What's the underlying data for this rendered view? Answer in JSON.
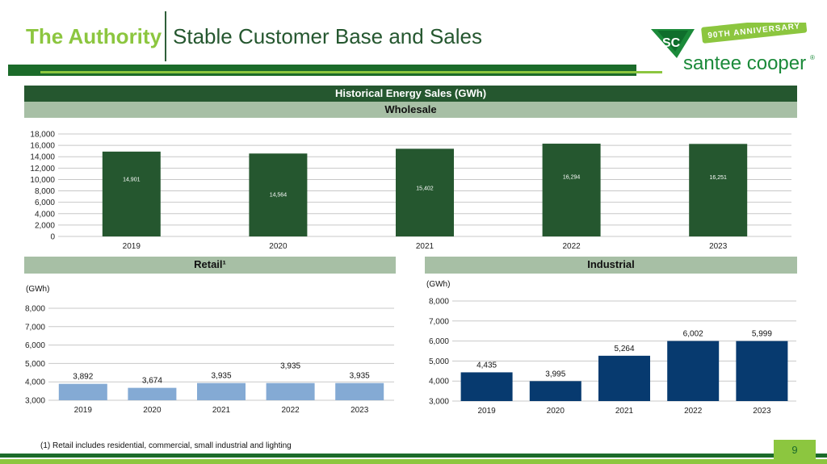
{
  "header": {
    "title_left": "The Authority",
    "title_right": "Stable Customer Base and Sales"
  },
  "logo": {
    "anniversary": "90TH ANNIVERSARY",
    "brand": "santee cooper",
    "registered": "®",
    "mark": "SC"
  },
  "sections": {
    "main_title": "Historical Energy Sales (GWh)",
    "wholesale": "Wholesale",
    "retail": "Retail¹",
    "industrial": "Industrial"
  },
  "units": {
    "retail": "(GWh)",
    "industrial": "(GWh)"
  },
  "footnote": "(1) Retail includes residential, commercial, small industrial and lighting",
  "page_number": "9",
  "colors": {
    "dark_green": "#25572f",
    "light_green": "#8cc63f",
    "band_green": "#a7bfa5",
    "retail_bar": "#84aad4",
    "industrial_bar": "#073a6f"
  },
  "chart_data": [
    {
      "id": "wholesale",
      "type": "bar",
      "categories": [
        "2019",
        "2020",
        "2021",
        "2022",
        "2023"
      ],
      "values": [
        14901,
        14564,
        15402,
        16294,
        16251
      ],
      "value_labels": [
        "14,901",
        "14,564",
        "15,402",
        "16,294",
        "16,251"
      ],
      "ylim": [
        0,
        18000
      ],
      "yticks": [
        0,
        2000,
        4000,
        6000,
        8000,
        10000,
        12000,
        14000,
        16000,
        18000
      ],
      "ytick_labels": [
        "0",
        "2,000",
        "4,000",
        "6,000",
        "8,000",
        "10,000",
        "12,000",
        "14,000",
        "16,000",
        "18,000"
      ],
      "grid": true,
      "color": "#25572f"
    },
    {
      "id": "retail",
      "type": "bar",
      "categories": [
        "2019",
        "2020",
        "2021",
        "2022",
        "2023"
      ],
      "values": [
        3892,
        3674,
        3935,
        3935,
        3935
      ],
      "value_labels": [
        "3,892",
        "3,674",
        "3,935",
        "3,935",
        "3,935"
      ],
      "ylim": [
        3000,
        8000
      ],
      "yticks": [
        3000,
        4000,
        5000,
        6000,
        7000,
        8000
      ],
      "ytick_labels": [
        "3,000",
        "4,000",
        "5,000",
        "6,000",
        "7,000",
        "8,000"
      ],
      "grid": true,
      "color": "#84aad4"
    },
    {
      "id": "industrial",
      "type": "bar",
      "categories": [
        "2019",
        "2020",
        "2021",
        "2022",
        "2023"
      ],
      "values": [
        4435,
        3995,
        5264,
        6002,
        5999
      ],
      "value_labels": [
        "4,435",
        "3,995",
        "5,264",
        "6,002",
        "5,999"
      ],
      "ylim": [
        3000,
        8000
      ],
      "yticks": [
        3000,
        4000,
        5000,
        6000,
        7000,
        8000
      ],
      "ytick_labels": [
        "3,000",
        "4,000",
        "5,000",
        "6,000",
        "7,000",
        "8,000"
      ],
      "grid": true,
      "color": "#073a6f"
    }
  ]
}
